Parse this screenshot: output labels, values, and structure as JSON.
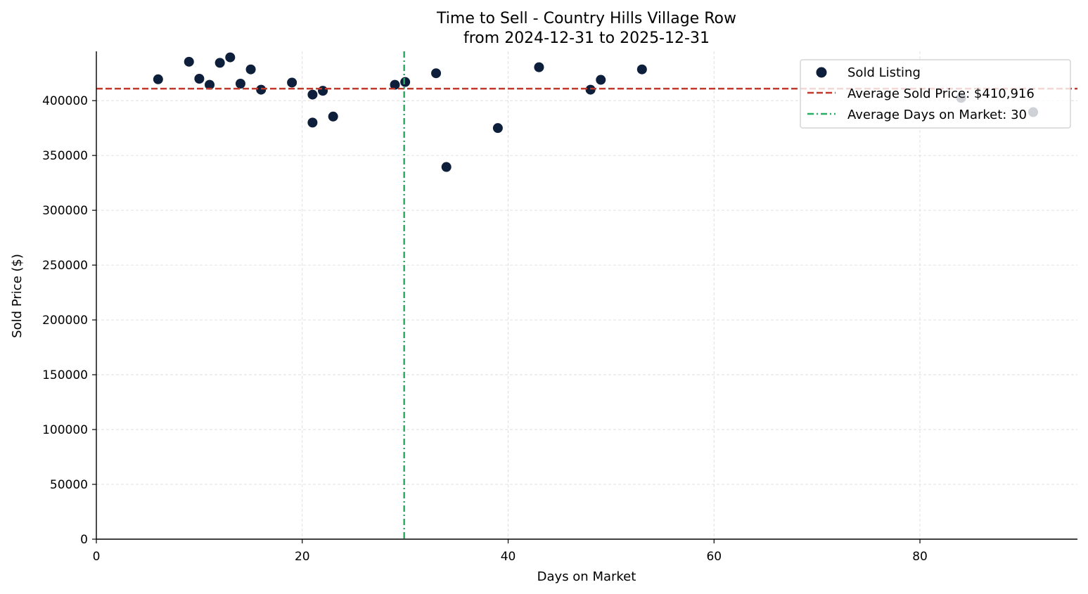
{
  "chart_data": {
    "type": "scatter",
    "title": "Time to Sell - Country Hills Village Row",
    "subtitle": "from 2024-12-31 to 2025-12-31",
    "xlabel": "Days on Market",
    "ylabel": "Sold Price ($)",
    "xlim": [
      0,
      95.3
    ],
    "ylim": [
      0,
      445000
    ],
    "x_ticks": [
      0,
      20,
      40,
      60,
      80
    ],
    "y_ticks": [
      0,
      50000,
      100000,
      150000,
      200000,
      250000,
      300000,
      350000,
      400000
    ],
    "grid": true,
    "legend_position": "top-right",
    "colors": {
      "points": "#0d1f3a",
      "avg_price_line": "#c0392b",
      "avg_days_line": "#27ae60",
      "grid": "#d9d9d9",
      "axis": "#000000"
    },
    "series": [
      {
        "name": "Sold Listing",
        "points": [
          {
            "x": 6,
            "y": 419500
          },
          {
            "x": 9,
            "y": 435500
          },
          {
            "x": 10,
            "y": 420000
          },
          {
            "x": 11,
            "y": 414500
          },
          {
            "x": 12,
            "y": 434500
          },
          {
            "x": 13,
            "y": 439500
          },
          {
            "x": 14,
            "y": 415500
          },
          {
            "x": 15,
            "y": 428500
          },
          {
            "x": 16,
            "y": 410000
          },
          {
            "x": 19,
            "y": 416500
          },
          {
            "x": 21,
            "y": 405500
          },
          {
            "x": 21,
            "y": 380000
          },
          {
            "x": 22,
            "y": 409000
          },
          {
            "x": 23,
            "y": 385500
          },
          {
            "x": 29,
            "y": 414500
          },
          {
            "x": 30,
            "y": 417000
          },
          {
            "x": 33,
            "y": 425000
          },
          {
            "x": 34,
            "y": 339500
          },
          {
            "x": 39,
            "y": 375000
          },
          {
            "x": 43,
            "y": 430500
          },
          {
            "x": 48,
            "y": 410000
          },
          {
            "x": 49,
            "y": 419000
          },
          {
            "x": 53,
            "y": 428500
          },
          {
            "x": 84,
            "y": 402500
          },
          {
            "x": 91,
            "y": 389500
          }
        ]
      }
    ],
    "reference_lines": {
      "average_price": {
        "value": 410916,
        "label": "Average Sold Price: $410,916"
      },
      "average_days": {
        "value": 29.9,
        "label": "Average Days on Market: 30"
      }
    },
    "legend": {
      "entries": [
        "Sold Listing",
        "Average Sold Price: $410,916",
        "Average Days on Market: 30"
      ]
    }
  }
}
